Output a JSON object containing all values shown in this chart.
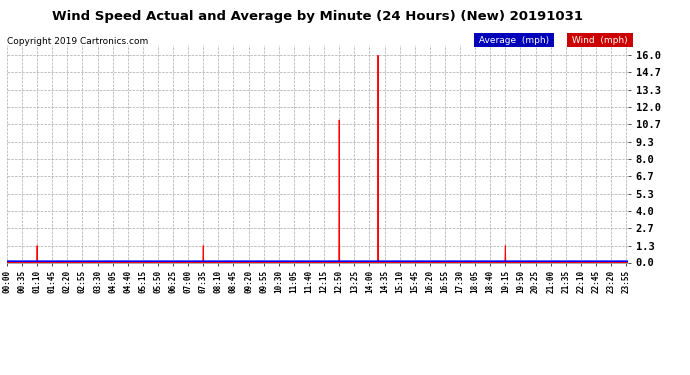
{
  "title": "Wind Speed Actual and Average by Minute (24 Hours) (New) 20191031",
  "copyright": "Copyright 2019 Cartronics.com",
  "yticks": [
    0.0,
    1.3,
    2.7,
    4.0,
    5.3,
    6.7,
    8.0,
    9.3,
    10.7,
    12.0,
    13.3,
    14.7,
    16.0
  ],
  "ylim": [
    0.0,
    16.8
  ],
  "wind_color": "#ff0000",
  "avg_color": "#0000ff",
  "background_color": "#ffffff",
  "plot_background": "#ffffff",
  "legend_avg_bg": "#0000bb",
  "legend_wind_bg": "#cc0000",
  "wind_spikes": [
    {
      "minute": 70,
      "value": 1.3
    },
    {
      "minute": 455,
      "value": 1.3
    },
    {
      "minute": 770,
      "value": 11.0
    },
    {
      "minute": 860,
      "value": 16.0
    },
    {
      "minute": 1155,
      "value": 1.3
    }
  ],
  "total_minutes": 1440,
  "avg_value": 0.1,
  "xtick_step": 35
}
